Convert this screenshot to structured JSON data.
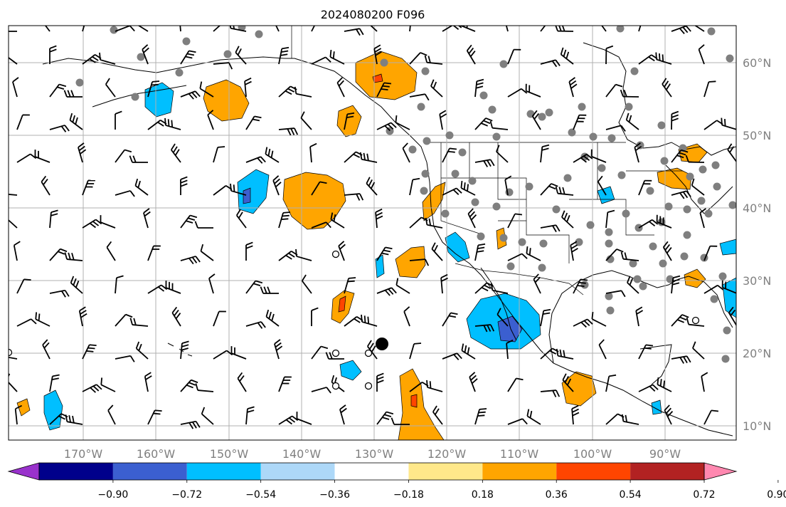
{
  "title": "2024080200 F096",
  "map": {
    "lon_labels": [
      "170°W",
      "160°W",
      "150°W",
      "140°W",
      "130°W",
      "120°W",
      "110°W",
      "100°W",
      "90°W"
    ],
    "lat_labels": [
      "60°N",
      "50°N",
      "40°N",
      "30°N",
      "20°N",
      "10°N"
    ],
    "gridline_color": "#b0b0b0",
    "axis_label_color": "#808080"
  },
  "colorbar": {
    "tick_labels": [
      "−0.90",
      "−0.72",
      "−0.54",
      "−0.36",
      "−0.18",
      "0.18",
      "0.36",
      "0.54",
      "0.72",
      "0.90"
    ],
    "colors": [
      "#9932cc",
      "#00008b",
      "#3b5fd0",
      "#00bfff",
      "#add8f8",
      "#ffffff",
      "#ffe88a",
      "#ffa500",
      "#ff4500",
      "#b22222",
      "#ff88b0"
    ]
  }
}
